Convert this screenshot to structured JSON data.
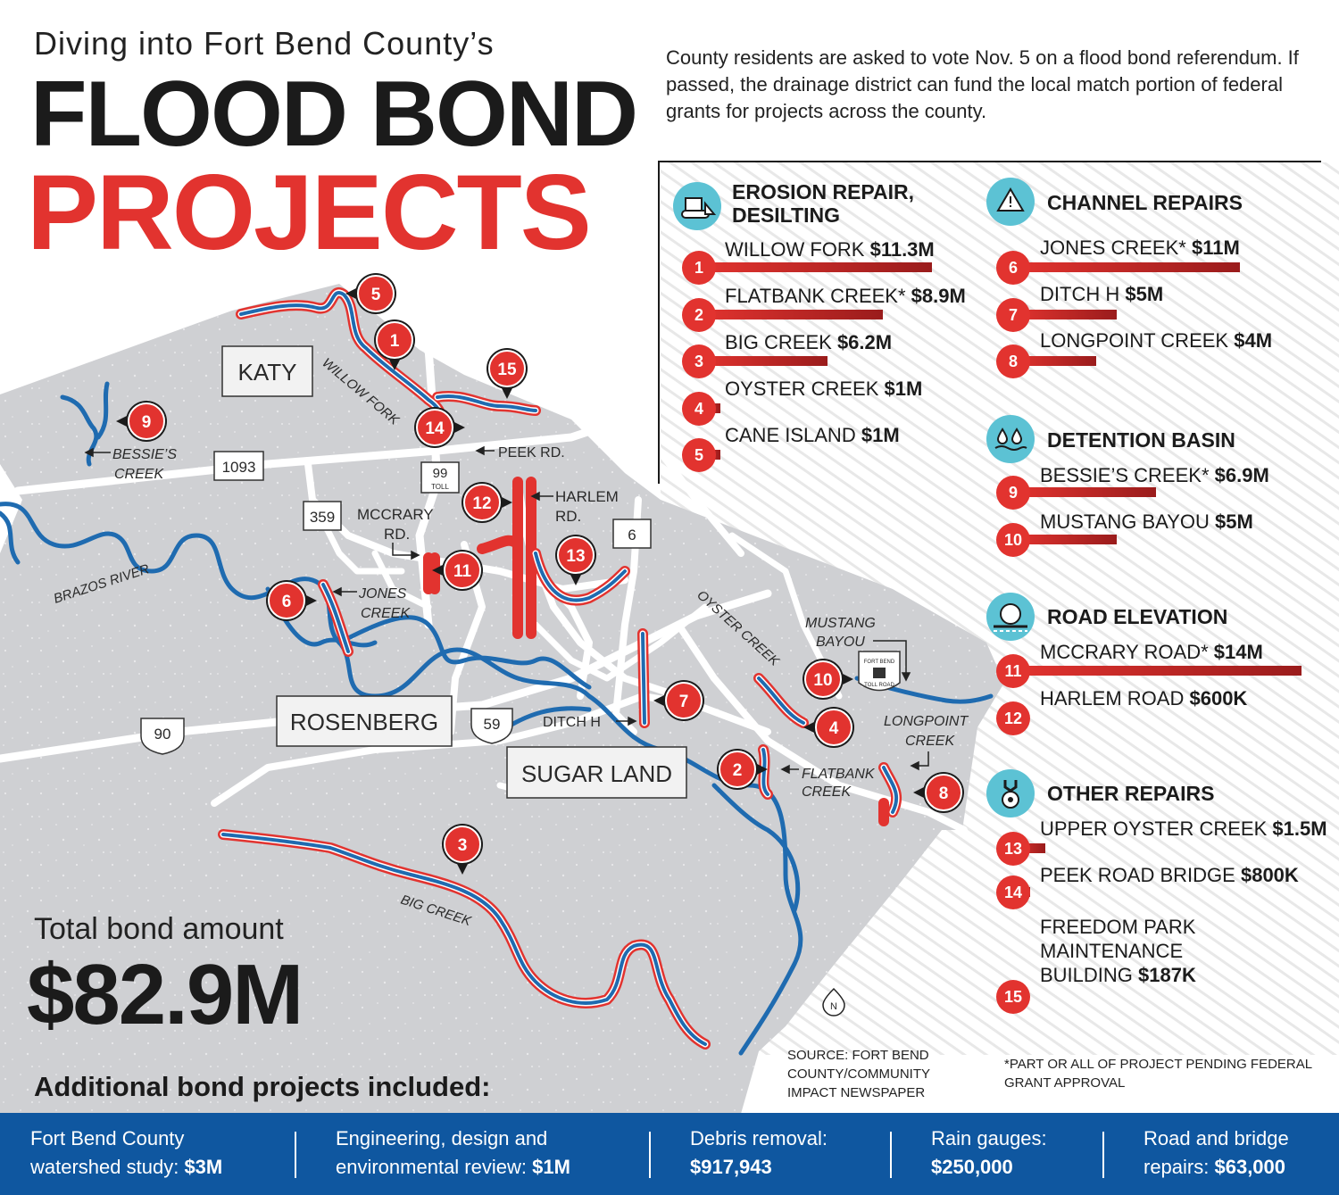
{
  "header": {
    "subtitle": "Diving into Fort Bend County’s",
    "title_line1": "FLOOD BOND",
    "title_line2": "PROJECTS",
    "intro": "County residents are asked to vote Nov. 5 on a flood bond referendum. If passed, the drainage district can fund the local match portion of federal grants for projects across the county."
  },
  "colors": {
    "accent_red": "#e2332f",
    "river_blue": "#1f6bb0",
    "map_gray": "#cfd0d3",
    "footer_blue": "#0f57a0",
    "icon_teal": "#5cc2d4"
  },
  "legend": {
    "erosion": {
      "title_line1": "EROSION REPAIR,",
      "title_line2": "DESILTING",
      "icon": "bulldozer-icon",
      "items": [
        {
          "n": "1",
          "name": "WILLOW FORK",
          "amount": "$11.3M",
          "value_m": 11.3
        },
        {
          "n": "2",
          "name": "FLATBANK CREEK*",
          "amount": "$8.9M",
          "value_m": 8.9
        },
        {
          "n": "3",
          "name": "BIG CREEK",
          "amount": "$6.2M",
          "value_m": 6.2
        },
        {
          "n": "4",
          "name": "OYSTER CREEK",
          "amount": "$1M",
          "value_m": 1
        },
        {
          "n": "5",
          "name": "CANE ISLAND",
          "amount": "$1M",
          "value_m": 1
        }
      ]
    },
    "channel": {
      "title": "CHANNEL REPAIRS",
      "icon": "channel-warning-icon",
      "items": [
        {
          "n": "6",
          "name": "JONES CREEK*",
          "amount": "$11M",
          "value_m": 11
        },
        {
          "n": "7",
          "name": "DITCH H",
          "amount": "$5M",
          "value_m": 5
        },
        {
          "n": "8",
          "name": "LONGPOINT CREEK",
          "amount": "$4M",
          "value_m": 4
        }
      ]
    },
    "detention": {
      "title": "DETENTION BASIN",
      "icon": "water-drops-icon",
      "items": [
        {
          "n": "9",
          "name": "BESSIE’S CREEK*",
          "amount": "$6.9M",
          "value_m": 6.9
        },
        {
          "n": "10",
          "name": "MUSTANG BAYOU",
          "amount": "$5M",
          "value_m": 5
        }
      ]
    },
    "road": {
      "title": "ROAD ELEVATION",
      "icon": "road-icon",
      "items": [
        {
          "n": "11",
          "name": "MCCRARY ROAD*",
          "amount": "$14M",
          "value_m": 14
        },
        {
          "n": "12",
          "name": "HARLEM ROAD",
          "amount": "$600K",
          "value_m": 0.6
        }
      ]
    },
    "other": {
      "title": "OTHER REPAIRS",
      "icon": "wrench-gear-icon",
      "items": [
        {
          "n": "13",
          "name": "UPPER OYSTER CREEK",
          "amount": "$1.5M",
          "value_m": 1.5
        },
        {
          "n": "14",
          "name": "PEEK ROAD BRIDGE",
          "amount": "$800K",
          "value_m": 0.8
        },
        {
          "n": "15",
          "name_line1": "FREEDOM PARK",
          "name_line2": "MAINTENANCE",
          "name_line3": "BUILDING",
          "amount": "$187K",
          "value_m": 0.187
        }
      ]
    }
  },
  "map": {
    "cities": {
      "katy": "KATY",
      "rosenberg": "ROSENBERG",
      "sugar_land": "SUGAR LAND"
    },
    "roads": {
      "r1093": "1093",
      "r99": "99",
      "r99_toll": "TOLL",
      "r359": "359",
      "r6": "6",
      "r90": "90",
      "r59": "59"
    },
    "labels": {
      "willow_fork": "WILLOW FORK",
      "peek_rd": "PEEK RD.",
      "bessies_1": "BESSIE’S",
      "bessies_2": "CREEK",
      "harlem_1": "HARLEM",
      "harlem_2": "RD.",
      "mccrary_1": "MCCRARY",
      "mccrary_2": "RD.",
      "brazos": "BRAZOS RIVER",
      "jones_1": "JONES",
      "jones_2": "CREEK",
      "oyster": "OYSTER CREEK",
      "mustang_1": "MUSTANG",
      "mustang_2": "BAYOU",
      "longpoint_1": "LONGPOINT",
      "longpoint_2": "CREEK",
      "ditch_h": "DITCH H",
      "flatbank_1": "FLATBANK",
      "flatbank_2": "CREEK",
      "big_creek": "BIG CREEK",
      "toll_1": "FORT BEND",
      "toll_2": "TOLL ROAD",
      "north": "N"
    },
    "markers": [
      "1",
      "2",
      "3",
      "4",
      "5",
      "6",
      "7",
      "8",
      "9",
      "10",
      "11",
      "12",
      "13",
      "14",
      "15"
    ]
  },
  "total": {
    "label": "Total bond amount",
    "value": "$82.9M"
  },
  "additional": {
    "title": "Additional bond projects included:",
    "items": [
      {
        "line1": "Fort Bend County",
        "label2": "watershed study:",
        "amount": "$3M"
      },
      {
        "line1": "Engineering, design and",
        "label2": "environmental review:",
        "amount": "$1M"
      },
      {
        "line1": "Debris removal:",
        "label2": "",
        "amount": "$917,943"
      },
      {
        "line1": "Rain gauges:",
        "label2": "",
        "amount": "$250,000"
      },
      {
        "line1": "Road and bridge",
        "label2": "repairs:",
        "amount": "$63,000"
      }
    ]
  },
  "source": "SOURCE: FORT BEND COUNTY/COMMUNITY IMPACT NEWSPAPER",
  "footnote": "*PART OR ALL OF PROJECT PENDING FEDERAL GRANT APPROVAL"
}
